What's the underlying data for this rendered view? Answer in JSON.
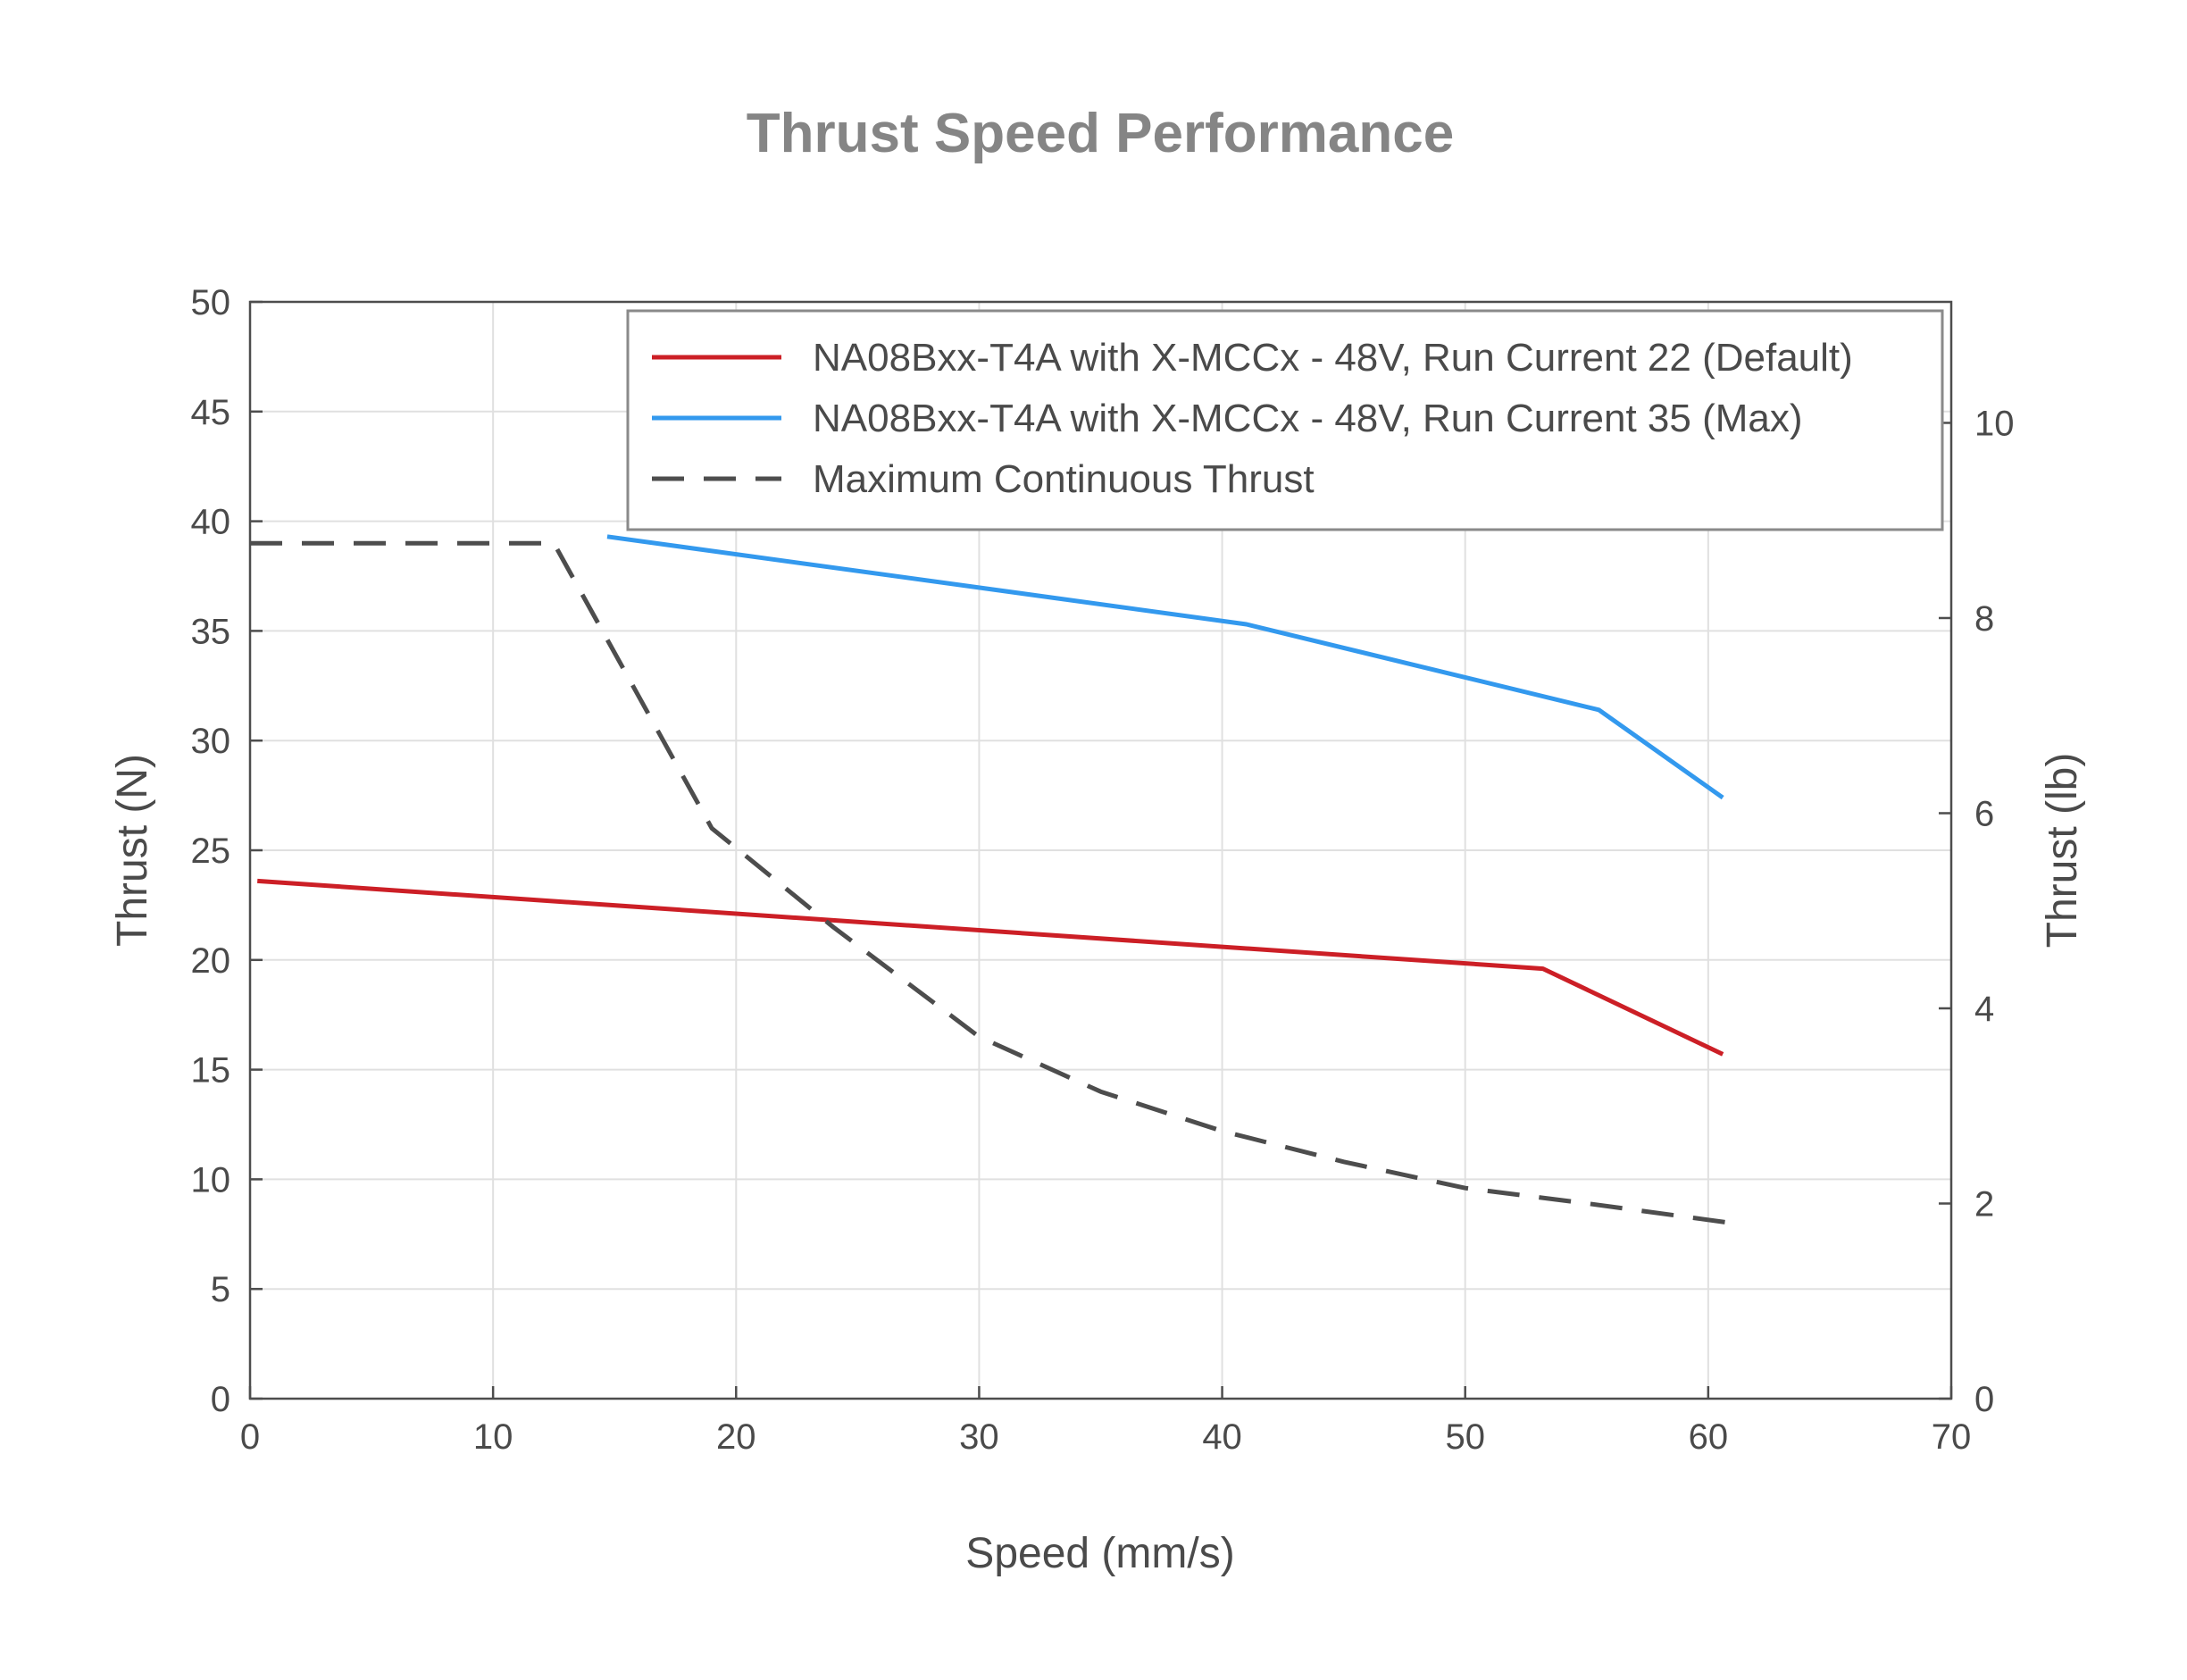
{
  "chart_data": {
    "type": "line",
    "title": "Thrust Speed Performance",
    "xlabel": "Speed (mm/s)",
    "ylabel": "Thrust (N)",
    "y2label": "Thrust (lb)",
    "xlim": [
      0,
      70
    ],
    "ylim": [
      0,
      50
    ],
    "y2lim": [
      0,
      11.24
    ],
    "xticks": [
      "0",
      "10",
      "20",
      "30",
      "40",
      "50",
      "60",
      "70"
    ],
    "yticks": [
      "0",
      "5",
      "10",
      "15",
      "20",
      "25",
      "30",
      "35",
      "40",
      "45",
      "50"
    ],
    "y2ticks": [
      "0",
      "2",
      "4",
      "6",
      "8",
      "10"
    ],
    "grid": true,
    "legend_position": "top-right",
    "series": [
      {
        "name": "NA08Bxx-T4A with X-MCCx - 48V, Run Current 22 (Default)",
        "color": "#cc1f26",
        "style": "solid",
        "x": [
          0.3,
          53.2,
          60.6
        ],
        "y": [
          23.6,
          19.6,
          15.7
        ]
      },
      {
        "name": "NA08Bxx-T4A with X-MCCx - 48V, Run Current 35 (Max)",
        "color": "#3399ee",
        "style": "solid",
        "x": [
          14.7,
          41.0,
          55.5,
          60.6
        ],
        "y": [
          39.3,
          35.3,
          31.4,
          27.4
        ]
      },
      {
        "name": "Maximum Continuous Thrust",
        "color": "#4d4d4d",
        "style": "dashed",
        "x": [
          0,
          12.5,
          19,
          24,
          30,
          35,
          40,
          45,
          50,
          55,
          61
        ],
        "y": [
          39.0,
          39.0,
          26.0,
          21.5,
          16.5,
          14.0,
          12.2,
          10.8,
          9.6,
          8.9,
          8.0
        ]
      }
    ]
  }
}
